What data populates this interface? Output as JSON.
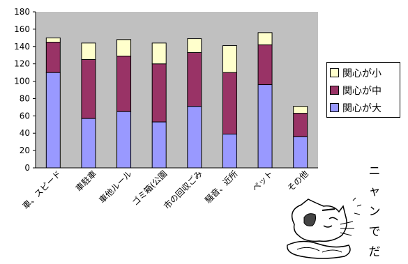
{
  "chart_data": {
    "type": "bar",
    "stacked": true,
    "categories": [
      "車、スピード",
      "車駐車",
      "車他ルール",
      "ゴミ箱(公園",
      "市の回収ごみ",
      "騒音、近所",
      "ペット",
      "その他"
    ],
    "series": [
      {
        "name": "関心が大",
        "color": "#9999ff",
        "values": [
          110,
          57,
          65,
          53,
          71,
          39,
          96,
          36
        ]
      },
      {
        "name": "関心が中",
        "color": "#993366",
        "values": [
          35,
          68,
          64,
          67,
          62,
          71,
          46,
          27
        ]
      },
      {
        "name": "関心が小",
        "color": "#ffffcc",
        "values": [
          5,
          19,
          19,
          24,
          16,
          31,
          14,
          8
        ]
      }
    ],
    "ylim": [
      0,
      180
    ],
    "yticks": [
      0,
      20,
      40,
      60,
      80,
      100,
      120,
      140,
      160,
      180
    ],
    "plot_background": "#c0c0c0",
    "grid": false,
    "legend_position": "right"
  },
  "legend": {
    "items": [
      {
        "label": "関心が小",
        "color": "#ffffcc"
      },
      {
        "label": "関心が中",
        "color": "#993366"
      },
      {
        "label": "関心が大",
        "color": "#9999ff"
      }
    ]
  },
  "side_text": [
    "ニ",
    "ャ",
    "ン",
    "で",
    "だ"
  ],
  "decoration": {
    "icon": "cat-drawing-icon"
  }
}
